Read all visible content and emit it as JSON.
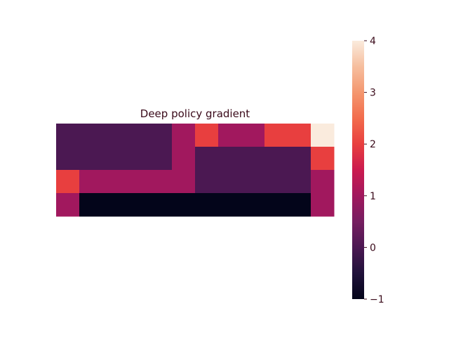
{
  "chart_data": {
    "type": "heatmap",
    "title": "Deep policy gradient",
    "xlabel": "",
    "ylabel": "",
    "rows": 4,
    "cols": 12,
    "values": [
      [
        0,
        0,
        0,
        0,
        0,
        1,
        2,
        1,
        1,
        2,
        2,
        4
      ],
      [
        0,
        0,
        0,
        0,
        0,
        1,
        0,
        0,
        0,
        0,
        0,
        2
      ],
      [
        2,
        1,
        1,
        1,
        1,
        1,
        0,
        0,
        0,
        0,
        0,
        1
      ],
      [
        1,
        -1,
        -1,
        -1,
        -1,
        -1,
        -1,
        -1,
        -1,
        -1,
        -1,
        1
      ]
    ],
    "vmin": -1,
    "vmax": 4,
    "colormap": "rocket",
    "colorbar": {
      "ticks": [
        -1,
        0,
        1,
        2,
        3,
        4
      ],
      "tick_labels": [
        "−1",
        "0",
        "1",
        "2",
        "3",
        "4"
      ]
    },
    "grid": false
  }
}
